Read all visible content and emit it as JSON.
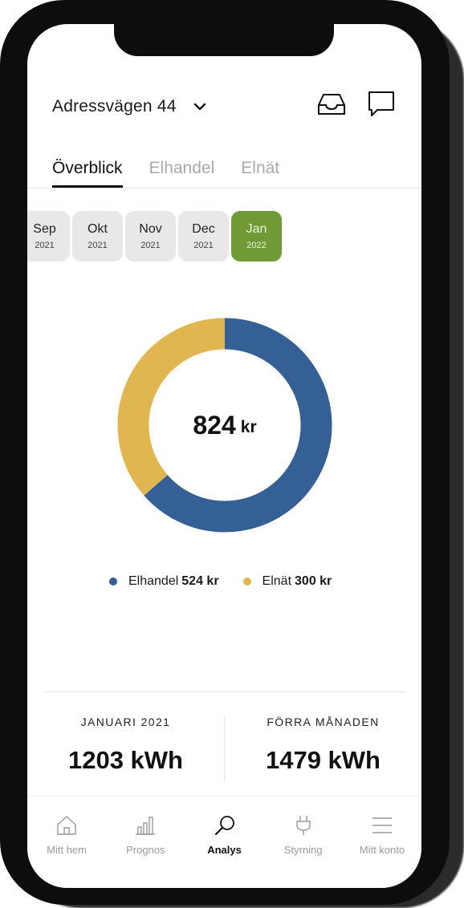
{
  "header": {
    "address": "Adressvägen 44",
    "address_dropdown_icon": "chevron-down-icon",
    "inbox_icon": "inbox-icon",
    "chat_icon": "chat-icon"
  },
  "tabs": [
    {
      "label": "Överblick",
      "active": true
    },
    {
      "label": "Elhandel",
      "active": false
    },
    {
      "label": "Elnät",
      "active": false
    }
  ],
  "months": [
    {
      "label": "Sep",
      "year": "2021",
      "active": false
    },
    {
      "label": "Okt",
      "year": "2021",
      "active": false
    },
    {
      "label": "Nov",
      "year": "2021",
      "active": false
    },
    {
      "label": "Dec",
      "year": "2021",
      "active": false
    },
    {
      "label": "Jan",
      "year": "2022",
      "active": true
    }
  ],
  "chart_data": {
    "type": "pie",
    "donut": true,
    "center_value": "824",
    "center_unit": "kr",
    "series": [
      {
        "name": "Elhandel",
        "value": 524,
        "value_label": "524 kr",
        "color": "#346096"
      },
      {
        "name": "Elnät",
        "value": 300,
        "value_label": "300 kr",
        "color": "#e1b650"
      }
    ]
  },
  "stats": [
    {
      "label": "JANUARI 2021",
      "value": "1203 kWh"
    },
    {
      "label": "FÖRRA MÅNADEN",
      "value": "1479 kWh"
    }
  ],
  "nav": [
    {
      "label": "Mitt hem",
      "icon": "home-icon",
      "active": false
    },
    {
      "label": "Prognos",
      "icon": "bar-chart-icon",
      "active": false
    },
    {
      "label": "Analys",
      "icon": "search-icon",
      "active": true
    },
    {
      "label": "Styrning",
      "icon": "plug-icon",
      "active": false
    },
    {
      "label": "Mitt konto",
      "icon": "menu-icon",
      "active": false
    }
  ],
  "colors": {
    "accent_green": "#6f9a35",
    "elhandel_blue": "#346096",
    "elnat_yellow": "#e1b650"
  }
}
